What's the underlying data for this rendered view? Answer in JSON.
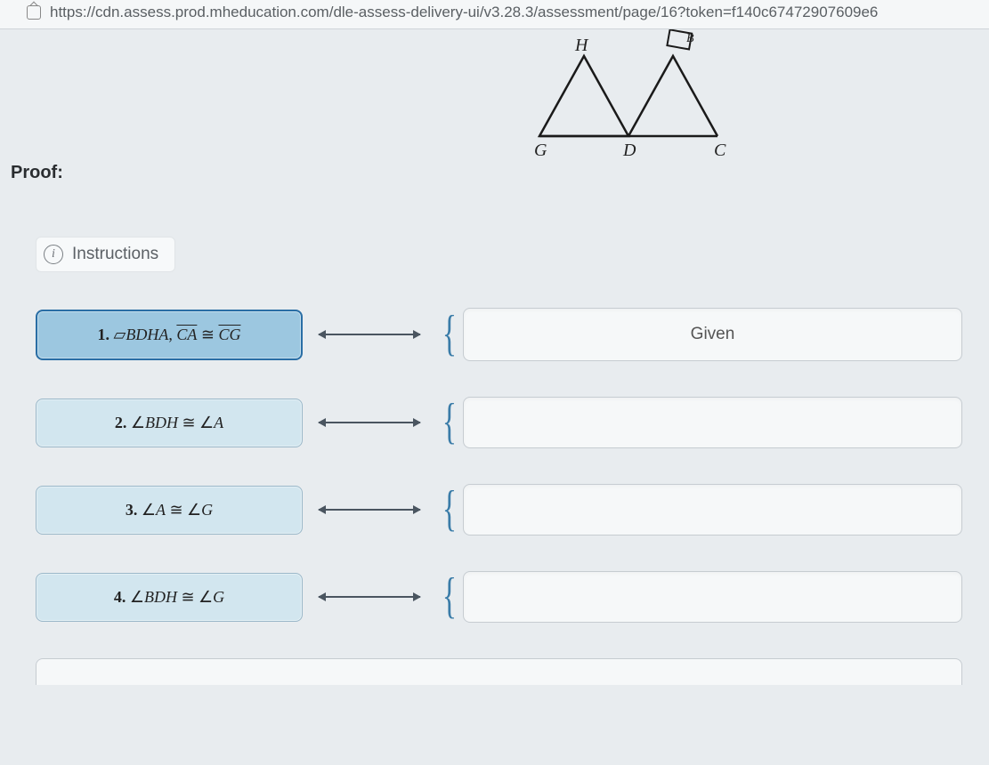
{
  "url": "https://cdn.assess.prod.mheducation.com/dle-assess-delivery-ui/v3.28.3/assessment/page/16?token=f140c67472907609e6",
  "proof_label": "Proof:",
  "instructions_label": "Instructions",
  "diagram": {
    "vertices": {
      "H": "H",
      "B": "B",
      "G": "G",
      "D": "D",
      "C": "C"
    },
    "colors": {
      "stroke": "#1a1a1a",
      "label": "#222"
    }
  },
  "rows": [
    {
      "num": "1.",
      "statement_html": "▱<span class='math-it'>BDHA</span>, <span class='overline math-it'>CA</span> ≅ <span class='overline math-it'>CG</span>",
      "selected": true,
      "reason": "Given"
    },
    {
      "num": "2.",
      "statement_html": "∠<span class='math-it'>BDH</span> ≅ ∠<span class='math-it'>A</span>",
      "selected": false,
      "reason": ""
    },
    {
      "num": "3.",
      "statement_html": "∠<span class='math-it'>A</span> ≅ ∠<span class='math-it'>G</span>",
      "selected": false,
      "reason": ""
    },
    {
      "num": "4.",
      "statement_html": "∠<span class='math-it'>BDH</span> ≅ ∠<span class='math-it'>G</span>",
      "selected": false,
      "reason": ""
    }
  ],
  "colors": {
    "page_bg": "#e8ecef",
    "box_bg": "#d2e6ef",
    "box_selected_bg": "#9cc7e0",
    "box_selected_border": "#2a6ea5",
    "reason_bg": "#f6f8f9",
    "connector": "#4a5560",
    "brace": "#3a7ca8"
  }
}
